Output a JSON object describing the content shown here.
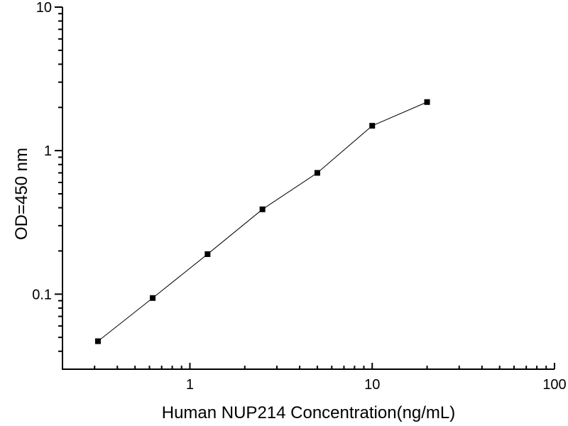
{
  "chart_data": {
    "type": "line",
    "title": "",
    "xlabel": "Human NUP214 Concentration(ng/mL)",
    "ylabel": "OD=450 nm",
    "xscale": "log",
    "yscale": "log",
    "xlim": [
      0.2,
      100
    ],
    "ylim": [
      0.03,
      10
    ],
    "grid": false,
    "legend": false,
    "marker": "square",
    "marker_size": 8,
    "line_width": 1,
    "axis_color": "#000000",
    "line_color": "#000000",
    "marker_color": "#000000",
    "background": "#ffffff",
    "x": [
      0.313,
      0.625,
      1.25,
      2.5,
      5,
      10,
      20
    ],
    "y": [
      0.047,
      0.094,
      0.19,
      0.39,
      0.7,
      1.49,
      2.18
    ],
    "x_tick_values": [
      1,
      10,
      100
    ],
    "x_tick_labels": [
      "1",
      "10",
      "100"
    ],
    "y_tick_values": [
      0.1,
      1,
      10
    ],
    "y_tick_labels": [
      "0.1",
      "1",
      "10"
    ]
  }
}
